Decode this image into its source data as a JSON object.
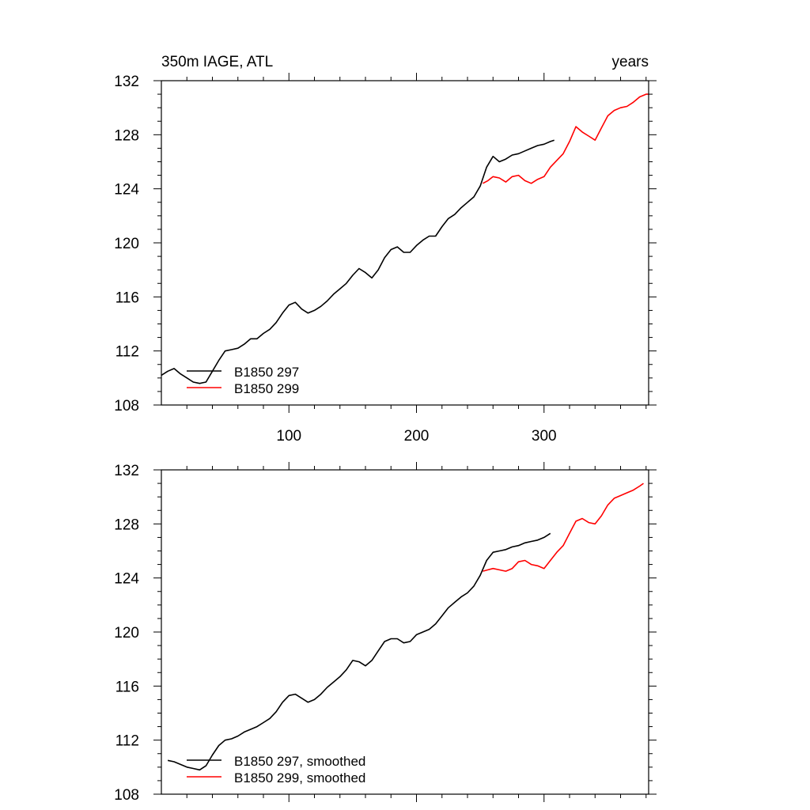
{
  "chart_data": [
    {
      "type": "line",
      "title_left": "350m IAGE, ATL",
      "title_right": "years",
      "xlim": [
        0,
        382
      ],
      "ylim": [
        108,
        132
      ],
      "x_ticks": [
        100,
        200,
        300
      ],
      "x_tick_labels": [
        "100",
        "200",
        "300"
      ],
      "y_ticks": [
        108,
        112,
        116,
        120,
        124,
        128,
        132
      ],
      "y_tick_labels": [
        "108",
        "112",
        "116",
        "120",
        "124",
        "128",
        "132"
      ],
      "grid": false,
      "legend_position": "bottom-left",
      "series": [
        {
          "name": "B1850 297",
          "color": "#000000",
          "x": [
            0,
            5,
            10,
            15,
            20,
            25,
            30,
            35,
            40,
            45,
            50,
            55,
            60,
            65,
            70,
            75,
            80,
            85,
            90,
            95,
            100,
            105,
            110,
            115,
            120,
            125,
            130,
            135,
            140,
            145,
            150,
            155,
            160,
            165,
            170,
            175,
            180,
            185,
            190,
            195,
            200,
            205,
            210,
            215,
            220,
            225,
            230,
            235,
            240,
            245,
            250,
            255,
            260,
            265,
            270,
            275,
            280,
            285,
            290,
            295,
            300,
            305,
            308
          ],
          "values": [
            110.2,
            110.5,
            110.7,
            110.3,
            110.0,
            109.7,
            109.6,
            109.7,
            110.5,
            111.3,
            112.0,
            112.1,
            112.2,
            112.5,
            112.9,
            112.9,
            113.3,
            113.6,
            114.1,
            114.8,
            115.4,
            115.6,
            115.1,
            114.8,
            115.0,
            115.3,
            115.7,
            116.2,
            116.6,
            117.0,
            117.6,
            118.1,
            117.8,
            117.4,
            118.0,
            118.9,
            119.5,
            119.7,
            119.3,
            119.3,
            119.8,
            120.2,
            120.5,
            120.5,
            121.2,
            121.8,
            122.1,
            122.6,
            123.0,
            123.4,
            124.2,
            125.6,
            126.4,
            126.0,
            126.2,
            126.5,
            126.6,
            126.8,
            127.0,
            127.2,
            127.3,
            127.5,
            127.6
          ]
        },
        {
          "name": "B1850 299",
          "color": "#ff0000",
          "x": [
            252,
            256,
            260,
            265,
            270,
            275,
            280,
            285,
            290,
            295,
            300,
            305,
            310,
            315,
            320,
            325,
            330,
            335,
            340,
            345,
            350,
            355,
            360,
            365,
            370,
            375,
            380,
            382
          ],
          "values": [
            124.4,
            124.6,
            124.9,
            124.8,
            124.5,
            124.9,
            125.0,
            124.6,
            124.4,
            124.7,
            124.9,
            125.6,
            126.1,
            126.6,
            127.5,
            128.6,
            128.2,
            127.9,
            127.6,
            128.5,
            129.4,
            129.8,
            130.0,
            130.1,
            130.4,
            130.8,
            131.0,
            131.0
          ]
        }
      ]
    },
    {
      "type": "line",
      "xlim": [
        0,
        382
      ],
      "ylim": [
        108,
        132
      ],
      "y_ticks": [
        108,
        112,
        116,
        120,
        124,
        128,
        132
      ],
      "y_tick_labels": [
        "108",
        "112",
        "116",
        "120",
        "124",
        "128",
        "132"
      ],
      "grid": false,
      "legend_position": "bottom-left",
      "series": [
        {
          "name": "B1850 297, smoothed",
          "color": "#000000",
          "x": [
            5,
            10,
            15,
            20,
            25,
            30,
            35,
            40,
            45,
            50,
            55,
            60,
            65,
            70,
            75,
            80,
            85,
            90,
            95,
            100,
            105,
            110,
            115,
            120,
            125,
            130,
            135,
            140,
            145,
            150,
            155,
            160,
            165,
            170,
            175,
            180,
            185,
            190,
            195,
            200,
            205,
            210,
            215,
            220,
            225,
            230,
            235,
            240,
            245,
            250,
            255,
            260,
            265,
            270,
            275,
            280,
            285,
            290,
            295,
            300,
            305
          ],
          "values": [
            110.5,
            110.4,
            110.2,
            110.0,
            109.9,
            109.8,
            110.1,
            110.9,
            111.6,
            112.0,
            112.1,
            112.3,
            112.6,
            112.8,
            113.0,
            113.3,
            113.6,
            114.1,
            114.8,
            115.3,
            115.4,
            115.1,
            114.8,
            115.0,
            115.4,
            115.9,
            116.3,
            116.7,
            117.2,
            117.9,
            117.8,
            117.5,
            117.9,
            118.6,
            119.3,
            119.5,
            119.5,
            119.2,
            119.3,
            119.8,
            120.0,
            120.2,
            120.6,
            121.2,
            121.8,
            122.2,
            122.6,
            122.9,
            123.4,
            124.2,
            125.3,
            125.9,
            126.0,
            126.1,
            126.3,
            126.4,
            126.6,
            126.7,
            126.8,
            127.0,
            127.3
          ]
        },
        {
          "name": "B1850 299, smoothed",
          "color": "#ff0000",
          "x": [
            252,
            256,
            260,
            265,
            270,
            275,
            280,
            285,
            290,
            295,
            300,
            305,
            310,
            315,
            320,
            325,
            330,
            335,
            340,
            345,
            350,
            355,
            360,
            365,
            370,
            375,
            378
          ],
          "values": [
            124.5,
            124.6,
            124.7,
            124.6,
            124.5,
            124.7,
            125.2,
            125.3,
            125.0,
            124.9,
            124.7,
            125.3,
            125.9,
            126.4,
            127.3,
            128.2,
            128.4,
            128.1,
            128.0,
            128.6,
            129.4,
            129.9,
            130.1,
            130.3,
            130.5,
            130.8,
            131.0
          ]
        }
      ]
    }
  ]
}
